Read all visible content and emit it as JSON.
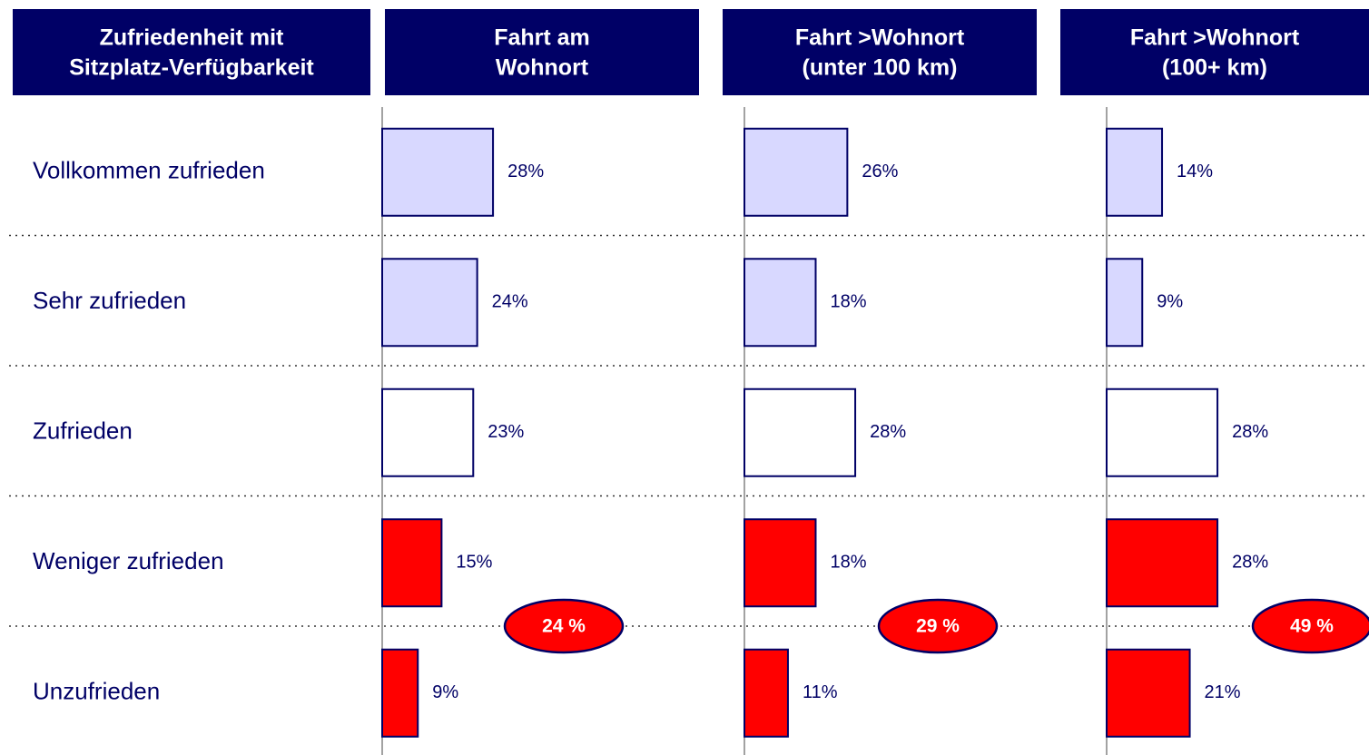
{
  "chart_data": {
    "type": "bar",
    "orientation": "horizontal",
    "title": [
      "Zufriedenheit mit",
      "Sitzplatz-Verfügbarkeit"
    ],
    "categories": [
      "Vollkommen zufrieden",
      "Sehr zufrieden",
      "Zufrieden",
      "Weniger zufrieden",
      "Unzufrieden"
    ],
    "colors": [
      "#d8d8ff",
      "#d8d8ff",
      "#ffffff",
      "#ff0000",
      "#ff0000"
    ],
    "series": [
      {
        "name": [
          "Fahrt am",
          "Wohnort"
        ],
        "values": [
          28,
          24,
          23,
          15,
          9
        ],
        "value_labels": [
          "28%",
          "24%",
          "23%",
          "15%",
          "9%"
        ],
        "highlight": "24 %"
      },
      {
        "name": [
          "Fahrt >Wohnort",
          "(unter 100 km)"
        ],
        "values": [
          26,
          18,
          28,
          18,
          11
        ],
        "value_labels": [
          "26%",
          "18%",
          "28%",
          "18%",
          "11%"
        ],
        "highlight": "29 %"
      },
      {
        "name": [
          "Fahrt >Wohnort",
          "(100+ km)"
        ],
        "values": [
          14,
          9,
          28,
          28,
          21
        ],
        "value_labels": [
          "14%",
          "9%",
          "28%",
          "28%",
          "21%"
        ],
        "highlight": "49 %"
      }
    ]
  }
}
